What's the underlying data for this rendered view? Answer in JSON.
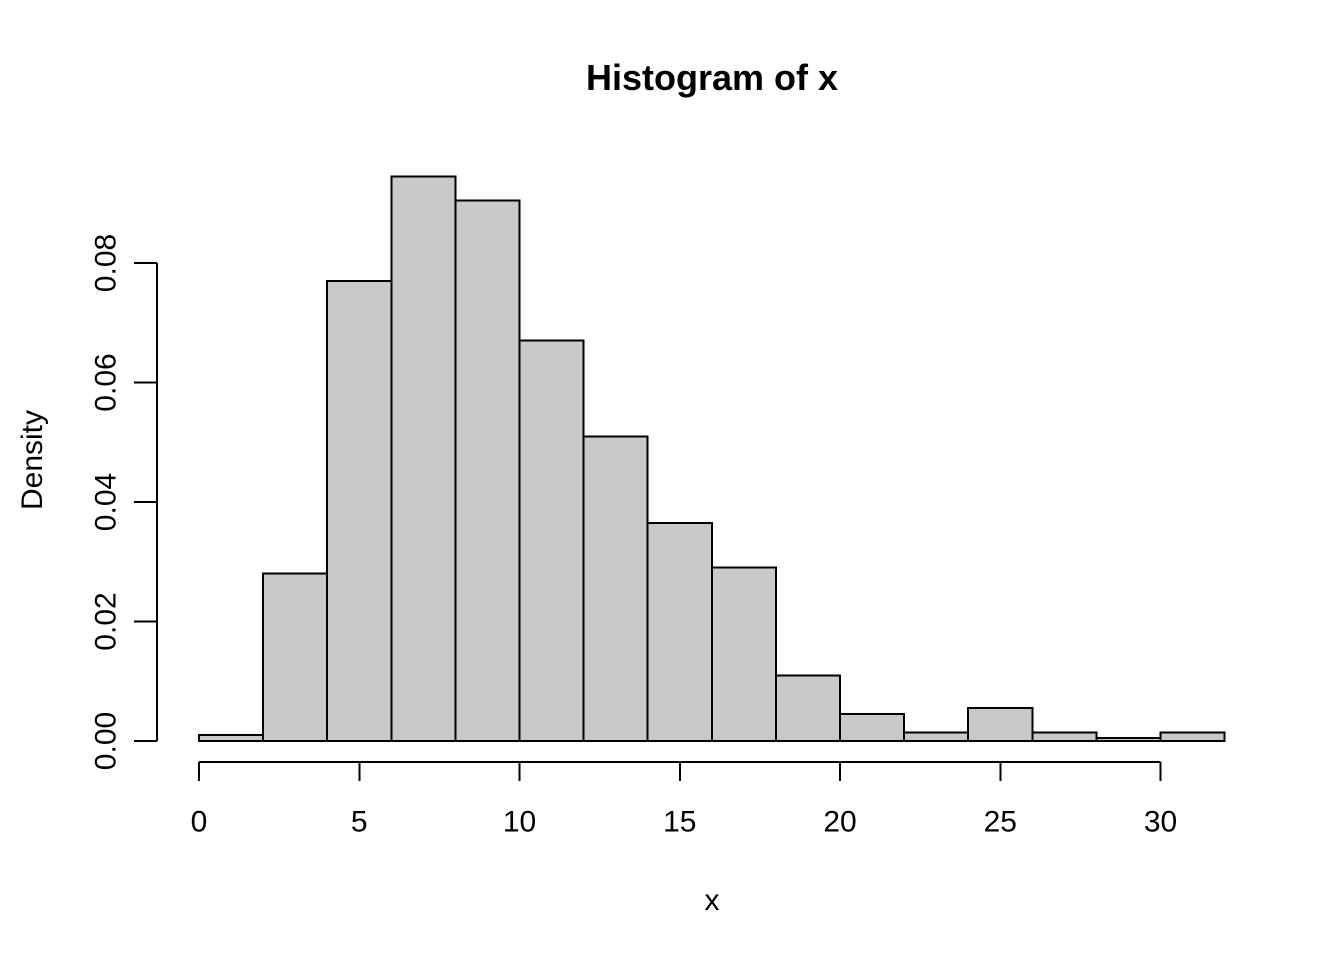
{
  "chart_data": {
    "type": "bar",
    "subtype": "histogram",
    "title": "Histogram of x",
    "xlabel": "x",
    "ylabel": "Density",
    "bin_edges": [
      0,
      2,
      4,
      6,
      8,
      10,
      12,
      14,
      16,
      18,
      20,
      22,
      24,
      26,
      28,
      30,
      32
    ],
    "densities": [
      0.001,
      0.028,
      0.077,
      0.0945,
      0.0905,
      0.067,
      0.051,
      0.0365,
      0.029,
      0.011,
      0.0045,
      0.0014,
      0.0055,
      0.0014,
      0.0005,
      0.0014
    ],
    "x_ticks": [
      0,
      5,
      10,
      15,
      20,
      25,
      30
    ],
    "x_tick_labels": [
      "0",
      "5",
      "10",
      "15",
      "20",
      "25",
      "30"
    ],
    "y_ticks": [
      0,
      0.02,
      0.04,
      0.06,
      0.08
    ],
    "y_tick_labels": [
      "0.00",
      "0.02",
      "0.04",
      "0.06",
      "0.08"
    ],
    "xlim": [
      0,
      32
    ],
    "ylim": [
      0,
      0.095
    ],
    "grid": false,
    "legend": "none"
  },
  "colors": {
    "bar_fill": "#C9C9C9",
    "bar_stroke": "#000000",
    "axis": "#000000",
    "text": "#000000",
    "background": "#FFFFFF"
  }
}
